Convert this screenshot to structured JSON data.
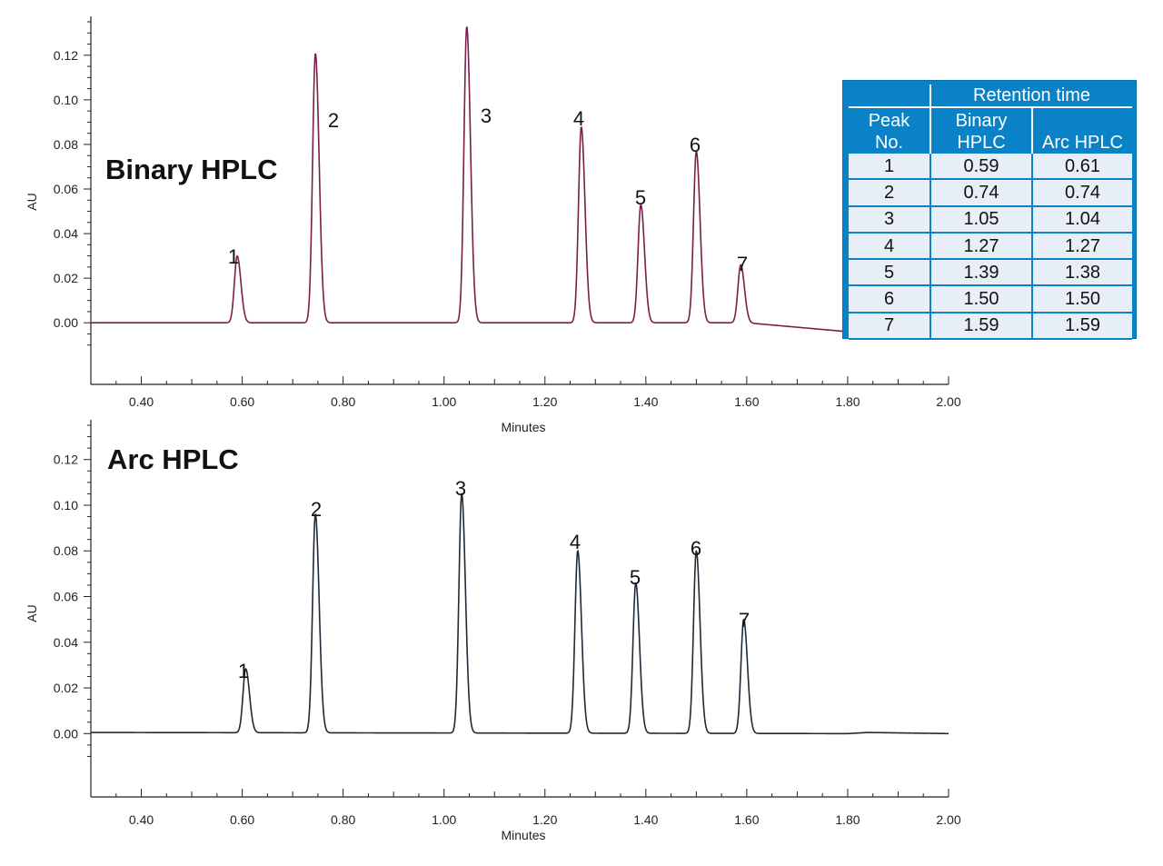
{
  "colors": {
    "binary_trace": "#7a1e4a",
    "arc_trace": "#1e2a38",
    "table_header_bg": "#0a82c8",
    "table_body_bg": "#e8eef6"
  },
  "table": {
    "group_header": "Retention time",
    "col_peak_line1": "Peak",
    "col_peak_line2": "No.",
    "col_binary_line1": "Binary",
    "col_binary_line2": "HPLC",
    "col_arc": "Arc HPLC",
    "rows": [
      {
        "peak": "1",
        "binary": "0.59",
        "arc": "0.61"
      },
      {
        "peak": "2",
        "binary": "0.74",
        "arc": "0.74"
      },
      {
        "peak": "3",
        "binary": "1.05",
        "arc": "1.04"
      },
      {
        "peak": "4",
        "binary": "1.27",
        "arc": "1.27"
      },
      {
        "peak": "5",
        "binary": "1.39",
        "arc": "1.38"
      },
      {
        "peak": "6",
        "binary": "1.50",
        "arc": "1.50"
      },
      {
        "peak": "7",
        "binary": "1.59",
        "arc": "1.59"
      }
    ]
  },
  "chart_data": [
    {
      "type": "line",
      "title": "Binary HPLC",
      "xlabel": "Minutes",
      "ylabel": "AU",
      "xlim": [
        0.3,
        2.0
      ],
      "ylim": [
        -0.015,
        0.135
      ],
      "xticks": [
        "0.40",
        "0.60",
        "0.80",
        "1.00",
        "1.20",
        "1.40",
        "1.60",
        "1.80",
        "2.00"
      ],
      "yticks": [
        "0.00",
        "0.02",
        "0.04",
        "0.06",
        "0.08",
        "0.10",
        "0.12"
      ],
      "peaks": [
        {
          "label": "1",
          "x": 0.59,
          "height": 0.03
        },
        {
          "label": "2",
          "x": 0.745,
          "height": 0.121
        },
        {
          "label": "3",
          "x": 1.045,
          "height": 0.133
        },
        {
          "label": "4",
          "x": 1.272,
          "height": 0.088
        },
        {
          "label": "5",
          "x": 1.39,
          "height": 0.053
        },
        {
          "label": "6",
          "x": 1.5,
          "height": 0.077
        },
        {
          "label": "7",
          "x": 1.588,
          "height": 0.026
        }
      ],
      "baseline": [
        [
          0.3,
          0.0
        ],
        [
          1.6,
          0.0
        ],
        [
          1.8,
          -0.004
        ],
        [
          1.85,
          -0.005
        ],
        [
          2.0,
          -0.004
        ]
      ]
    },
    {
      "type": "line",
      "title": "Arc HPLC",
      "xlabel": "Minutes",
      "ylabel": "AU",
      "xlim": [
        0.3,
        2.0
      ],
      "ylim": [
        -0.015,
        0.135
      ],
      "xticks": [
        "0.40",
        "0.60",
        "0.80",
        "1.00",
        "1.20",
        "1.40",
        "1.60",
        "1.80",
        "2.00"
      ],
      "yticks": [
        "0.00",
        "0.02",
        "0.04",
        "0.06",
        "0.08",
        "0.10",
        "0.12"
      ],
      "peaks": [
        {
          "label": "1",
          "x": 0.607,
          "height": 0.028
        },
        {
          "label": "2",
          "x": 0.745,
          "height": 0.096
        },
        {
          "label": "3",
          "x": 1.035,
          "height": 0.105
        },
        {
          "label": "4",
          "x": 1.265,
          "height": 0.08
        },
        {
          "label": "5",
          "x": 1.38,
          "height": 0.066
        },
        {
          "label": "6",
          "x": 1.5,
          "height": 0.08
        },
        {
          "label": "7",
          "x": 1.594,
          "height": 0.05
        }
      ],
      "baseline": [
        [
          0.3,
          0.0005
        ],
        [
          1.8,
          0.0
        ],
        [
          1.84,
          0.0005
        ],
        [
          2.0,
          0.0
        ]
      ]
    }
  ]
}
